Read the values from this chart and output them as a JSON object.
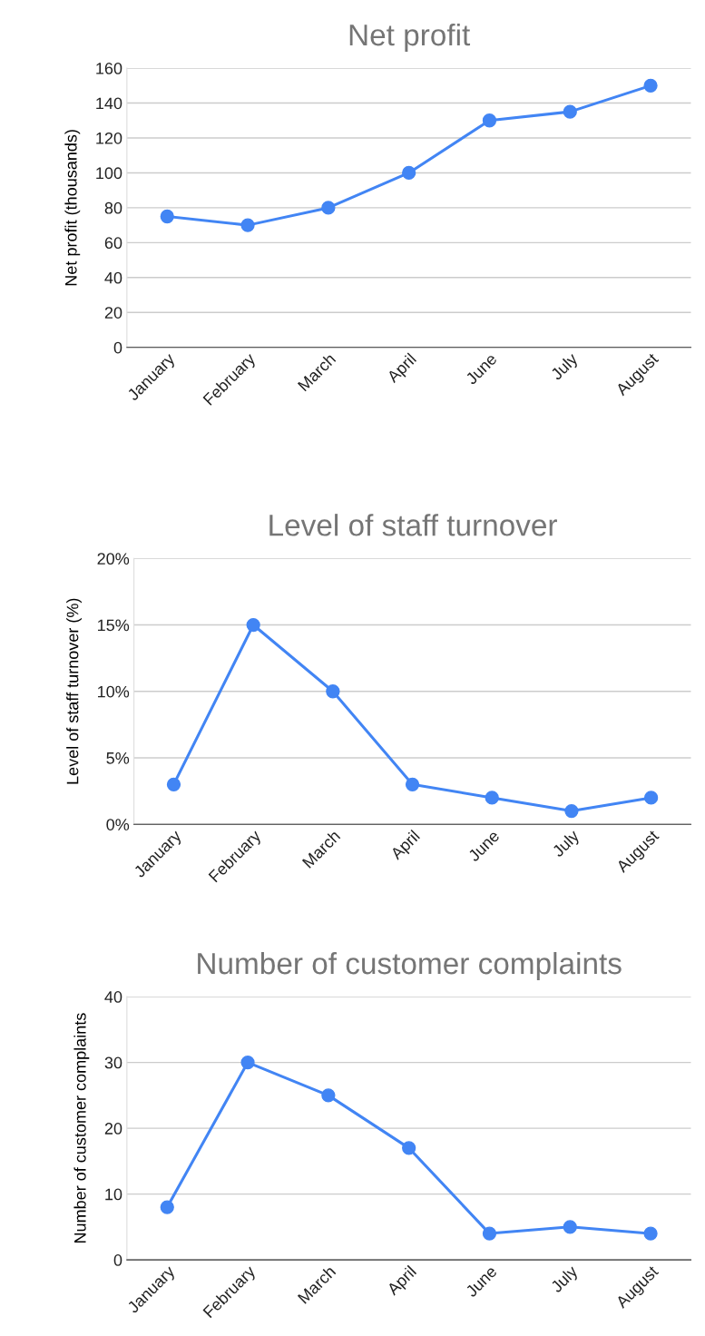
{
  "chart_data": [
    {
      "type": "line",
      "title": "Net profit",
      "ylabel": "Net profit (thousands)",
      "categories": [
        "January",
        "February",
        "March",
        "April",
        "June",
        "July",
        "August"
      ],
      "series": [
        {
          "color": "#4285f4",
          "values": [
            75,
            70,
            80,
            100,
            130,
            135,
            150
          ]
        }
      ],
      "ylim": [
        0,
        160
      ],
      "yticks": [
        0,
        20,
        40,
        60,
        80,
        100,
        120,
        140,
        160
      ],
      "grid": "y",
      "marker": "circle",
      "line_style": "solid"
    },
    {
      "type": "line",
      "title": "Level of staff turnover",
      "ylabel": "Level of staff turnover (%)",
      "categories": [
        "January",
        "February",
        "March",
        "April",
        "June",
        "July",
        "August"
      ],
      "series": [
        {
          "color": "#4285f4",
          "values": [
            3,
            15,
            10,
            3,
            2,
            1,
            2
          ]
        }
      ],
      "ylim": [
        0,
        20
      ],
      "yticks": [
        {
          "value": 0,
          "label": "0%"
        },
        {
          "value": 5,
          "label": "5%"
        },
        {
          "value": 10,
          "label": "10%"
        },
        {
          "value": 15,
          "label": "15%"
        },
        {
          "value": 20,
          "label": "20%"
        }
      ],
      "grid": "y",
      "marker": "circle",
      "line_style": "solid"
    },
    {
      "type": "line",
      "title": "Number of customer complaints",
      "ylabel": "Number of customer complaints",
      "categories": [
        "January",
        "February",
        "March",
        "April",
        "June",
        "July",
        "August"
      ],
      "series": [
        {
          "color": "#4285f4",
          "values": [
            8,
            30,
            25,
            17,
            4,
            5,
            4
          ]
        }
      ],
      "ylim": [
        0,
        40
      ],
      "yticks": [
        0,
        10,
        20,
        30,
        40
      ],
      "grid": "y",
      "marker": "circle",
      "line_style": "solid"
    }
  ]
}
